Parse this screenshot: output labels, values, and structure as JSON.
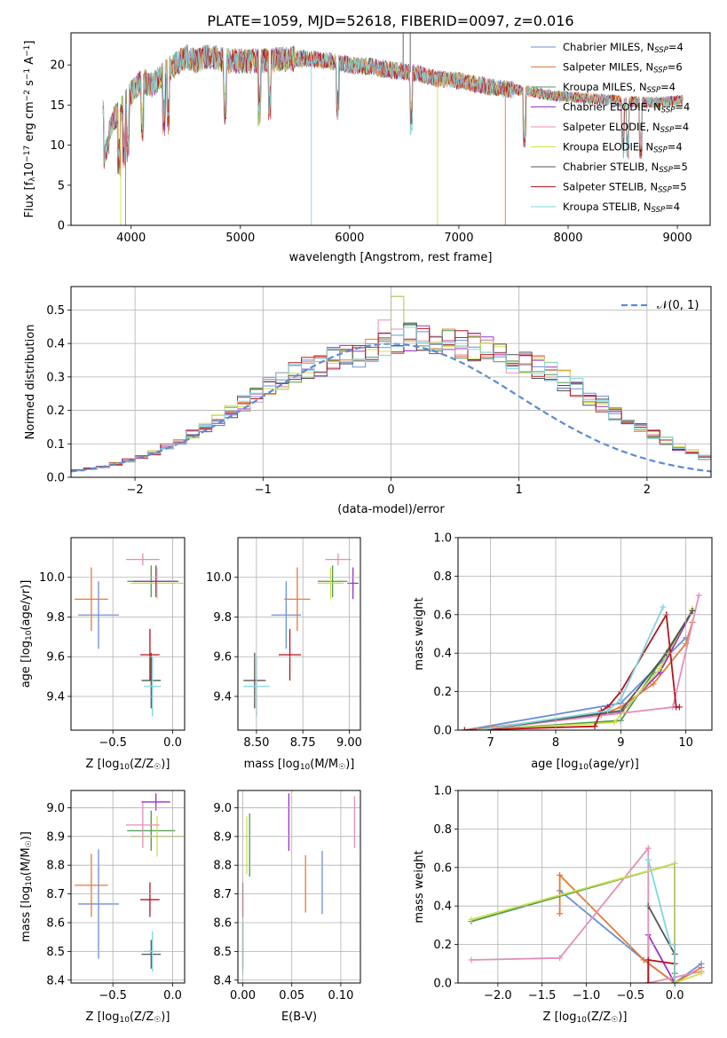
{
  "figure": {
    "title": "PLATE=1059, MJD=52618, FIBERID=0097, z=0.016"
  },
  "legend_models": [
    {
      "name": "Chabrier MILES, N",
      "sub": "SSP",
      "suffix": "=4",
      "color": "#6a8fd6"
    },
    {
      "name": "Salpeter MILES, N",
      "sub": "SSP",
      "suffix": "=6",
      "color": "#e67a35"
    },
    {
      "name": "Kroupa MILES, N",
      "sub": "SSP",
      "suffix": "=4",
      "color": "#4d9a4d"
    },
    {
      "name": "Chabrier ELODIE, N",
      "sub": "SSP",
      "suffix": "=4",
      "color": "#9b30c8"
    },
    {
      "name": "Salpeter ELODIE, N",
      "sub": "SSP",
      "suffix": "=4",
      "color": "#e58fb8"
    },
    {
      "name": "Kroupa ELODIE, N",
      "sub": "SSP",
      "suffix": "=4",
      "color": "#cfe04a"
    },
    {
      "name": "Chabrier STELIB, N",
      "sub": "SSP",
      "suffix": "=5",
      "color": "#555555"
    },
    {
      "name": "Salpeter STELIB, N",
      "sub": "SSP",
      "suffix": "=5",
      "color": "#b3151e"
    },
    {
      "name": "Kroupa STELIB, N",
      "sub": "SSP",
      "suffix": "=4",
      "color": "#7fd7e0"
    }
  ],
  "normal_legend": {
    "label": "𝒩(0, 1)",
    "color": "#5b8ad6"
  },
  "chart_data": [
    {
      "id": "spectrum",
      "type": "line",
      "xlabel": "wavelength [Angstrom, rest frame]",
      "ylabel": "Flux [f",
      "ylabel_sub": "λ",
      "ylabel_mid": "10",
      "ylabel_sup": "−17",
      "ylabel_rest": " erg cm",
      "ylabel_sup2": "−2",
      "ylabel_rest2": " s",
      "ylabel_sup3": "−1",
      "ylabel_rest3": " A",
      "ylabel_sup4": "−1",
      "ylabel_end": "]",
      "xlim": [
        3450,
        9300
      ],
      "ylim": [
        0,
        24
      ],
      "xticks": [
        4000,
        5000,
        6000,
        7000,
        8000,
        9000
      ],
      "yticks": [
        0,
        5,
        10,
        15,
        20
      ],
      "envelope": {
        "x": [
          3750,
          3800,
          3850,
          3900,
          3950,
          4000,
          4100,
          4200,
          4300,
          4400,
          4500,
          4600,
          4700,
          4800,
          4900,
          5000,
          5200,
          5400,
          5600,
          5800,
          6000,
          6200,
          6400,
          6600,
          6800,
          7000,
          7200,
          7400,
          7600,
          7800,
          8000,
          8200,
          8400,
          8600,
          8800,
          9000,
          9050
        ],
        "y": [
          10.0,
          12.0,
          13.5,
          14.0,
          15.5,
          16.5,
          18.0,
          17.5,
          19.0,
          20.0,
          21.0,
          20.5,
          21.0,
          20.8,
          20.5,
          20.5,
          20.5,
          20.7,
          20.8,
          20.5,
          20.0,
          19.8,
          19.3,
          19.0,
          18.3,
          18.0,
          17.5,
          17.0,
          16.8,
          16.3,
          16.0,
          15.8,
          15.6,
          15.4,
          15.3,
          15.5,
          15.6
        ]
      }
    },
    {
      "id": "residuals",
      "type": "histogram",
      "xlabel": "(data-model)/error",
      "ylabel": "Normed distribution",
      "xlim": [
        -2.5,
        2.5
      ],
      "ylim": [
        0,
        0.57
      ],
      "xticks": [
        -2,
        -1,
        0,
        1,
        2
      ],
      "yticks": [
        0.0,
        0.1,
        0.2,
        0.3,
        0.4,
        0.5
      ],
      "bin_width": 0.1,
      "center_values": [
        0.02,
        0.025,
        0.03,
        0.04,
        0.05,
        0.06,
        0.075,
        0.09,
        0.11,
        0.13,
        0.15,
        0.17,
        0.2,
        0.22,
        0.25,
        0.27,
        0.29,
        0.31,
        0.33,
        0.34,
        0.35,
        0.36,
        0.37,
        0.38,
        0.39,
        0.4,
        0.42,
        0.41,
        0.4,
        0.41,
        0.4,
        0.39,
        0.38,
        0.37,
        0.35,
        0.34,
        0.33,
        0.31,
        0.29,
        0.27,
        0.24,
        0.22,
        0.19,
        0.17,
        0.15,
        0.13,
        0.11,
        0.09,
        0.075,
        0.06
      ]
    },
    {
      "id": "age_vs_Z",
      "type": "errorbar",
      "xlabel": "Z [log",
      "xlabel_sub": "10",
      "xlabel_rest": "(Z/Z",
      "xlabel_sub2": "☉",
      "xlabel_end": ")]",
      "ylabel": "age  [log",
      "ylabel_sub": "10",
      "ylabel_rest": "(age/yr)]",
      "xlim": [
        -0.85,
        0.1
      ],
      "ylim": [
        9.23,
        10.2
      ],
      "xticks": [
        -0.5,
        0.0
      ],
      "xticklabels": [
        "−0.5",
        "0.0"
      ],
      "yticks": [
        9.4,
        9.6,
        9.8,
        10.0
      ],
      "points": [
        {
          "x": -0.62,
          "y": 9.81,
          "xerr": 0.17,
          "yerr": 0.17,
          "c": 0
        },
        {
          "x": -0.68,
          "y": 9.89,
          "xerr": 0.14,
          "yerr": 0.16,
          "c": 1
        },
        {
          "x": -0.18,
          "y": 9.98,
          "xerr": 0.2,
          "yerr": 0.08,
          "c": 2
        },
        {
          "x": -0.13,
          "y": 9.97,
          "xerr": 0.22,
          "yerr": 0.08,
          "c": 5
        },
        {
          "x": -0.25,
          "y": 10.09,
          "xerr": 0.14,
          "yerr": 0.03,
          "c": 4
        },
        {
          "x": -0.14,
          "y": 9.98,
          "xerr": 0.19,
          "yerr": 0.08,
          "c": 3
        },
        {
          "x": -0.19,
          "y": 9.61,
          "xerr": 0.08,
          "yerr": 0.13,
          "c": 7
        },
        {
          "x": -0.18,
          "y": 9.48,
          "xerr": 0.08,
          "yerr": 0.14,
          "c": 6
        },
        {
          "x": -0.17,
          "y": 9.45,
          "xerr": 0.07,
          "yerr": 0.15,
          "c": 8
        }
      ]
    },
    {
      "id": "age_vs_mass",
      "type": "errorbar",
      "xlabel": "mass [log",
      "xlabel_sub": "10",
      "xlabel_rest": "(M/M",
      "xlabel_sub2": "☉",
      "xlabel_end": ")]",
      "xlim": [
        8.4,
        9.06
      ],
      "ylim": [
        9.23,
        10.2
      ],
      "xticks": [
        8.5,
        8.75,
        9.0
      ],
      "xticklabels": [
        "8.50",
        "8.75",
        "9.00"
      ],
      "yticks": [
        9.4,
        9.6,
        9.8,
        10.0
      ],
      "points": [
        {
          "x": 8.66,
          "y": 9.81,
          "xerr": 0.08,
          "yerr": 0.17,
          "c": 0
        },
        {
          "x": 8.72,
          "y": 9.89,
          "xerr": 0.07,
          "yerr": 0.16,
          "c": 1
        },
        {
          "x": 8.91,
          "y": 9.98,
          "xerr": 0.08,
          "yerr": 0.08,
          "c": 2
        },
        {
          "x": 8.9,
          "y": 9.97,
          "xerr": 0.07,
          "yerr": 0.08,
          "c": 5
        },
        {
          "x": 8.94,
          "y": 10.09,
          "xerr": 0.07,
          "yerr": 0.03,
          "c": 4
        },
        {
          "x": 9.02,
          "y": 9.97,
          "xerr": 0.03,
          "yerr": 0.08,
          "c": 3
        },
        {
          "x": 8.68,
          "y": 9.61,
          "xerr": 0.06,
          "yerr": 0.13,
          "c": 7
        },
        {
          "x": 8.49,
          "y": 9.48,
          "xerr": 0.06,
          "yerr": 0.14,
          "c": 6
        },
        {
          "x": 8.5,
          "y": 9.45,
          "xerr": 0.07,
          "yerr": 0.15,
          "c": 8
        }
      ]
    },
    {
      "id": "weight_vs_age",
      "type": "line",
      "xlabel": "age  [log",
      "xlabel_sub": "10",
      "xlabel_rest": "(age/yr)]",
      "ylabel": "mass weight",
      "xlim": [
        6.5,
        10.4
      ],
      "ylim": [
        0,
        1.0
      ],
      "xticks": [
        7,
        8,
        9,
        10
      ],
      "yticks": [
        0.0,
        0.2,
        0.4,
        0.6,
        0.8,
        1.0
      ],
      "series": [
        {
          "c": 0,
          "x": [
            6.6,
            9.0,
            9.7,
            10.0
          ],
          "y": [
            0.0,
            0.14,
            0.38,
            0.48
          ]
        },
        {
          "c": 1,
          "x": [
            6.6,
            8.7,
            9.0,
            9.5,
            10.0,
            10.1
          ],
          "y": [
            0.0,
            0.08,
            0.12,
            0.24,
            0.45,
            0.56
          ]
        },
        {
          "c": 2,
          "x": [
            6.8,
            9.0,
            9.5,
            10.1
          ],
          "y": [
            0.0,
            0.05,
            0.3,
            0.62
          ]
        },
        {
          "c": 3,
          "x": [
            6.8,
            9.0,
            9.6,
            10.1
          ],
          "y": [
            0.0,
            0.09,
            0.3,
            0.62
          ]
        },
        {
          "c": 4,
          "x": [
            6.8,
            9.8,
            10.2
          ],
          "y": [
            0.0,
            0.12,
            0.7
          ]
        },
        {
          "c": 5,
          "x": [
            6.8,
            8.9,
            9.6,
            10.1
          ],
          "y": [
            0.0,
            0.04,
            0.32,
            0.63
          ]
        },
        {
          "c": 6,
          "x": [
            6.8,
            9.0,
            9.7,
            10.1
          ],
          "y": [
            0.0,
            0.1,
            0.4,
            0.62
          ]
        },
        {
          "c": 7,
          "x": [
            6.6,
            8.6,
            8.7,
            8.8,
            9.0,
            9.7,
            9.85,
            9.9
          ],
          "y": [
            0.0,
            0.02,
            0.1,
            0.12,
            0.2,
            0.6,
            0.12,
            0.12
          ]
        },
        {
          "c": 8,
          "x": [
            6.8,
            8.8,
            9.0,
            9.65
          ],
          "y": [
            0.0,
            0.1,
            0.16,
            0.64
          ]
        }
      ]
    },
    {
      "id": "mass_vs_Z",
      "type": "errorbar",
      "xlabel": "Z [log",
      "xlabel_sub": "10",
      "xlabel_rest": "(Z/Z",
      "xlabel_sub2": "☉",
      "xlabel_end": ")]",
      "ylabel": "mass [log",
      "ylabel_sub": "10",
      "ylabel_rest": "(M/M",
      "ylabel_sub2": "☉",
      "ylabel_end": ")]",
      "xlim": [
        -0.85,
        0.1
      ],
      "ylim": [
        8.39,
        9.06
      ],
      "xticks": [
        -0.5,
        0.0
      ],
      "xticklabels": [
        "−0.5",
        "0.0"
      ],
      "yticks": [
        8.4,
        8.5,
        8.6,
        8.7,
        8.8,
        8.9,
        9.0
      ],
      "points": [
        {
          "x": -0.62,
          "y": 8.665,
          "xerr": 0.17,
          "yerr": 0.19,
          "c": 0
        },
        {
          "x": -0.68,
          "y": 8.73,
          "xerr": 0.14,
          "yerr": 0.11,
          "c": 1
        },
        {
          "x": -0.18,
          "y": 8.92,
          "xerr": 0.2,
          "yerr": 0.07,
          "c": 2
        },
        {
          "x": -0.13,
          "y": 8.9,
          "xerr": 0.22,
          "yerr": 0.07,
          "c": 5
        },
        {
          "x": -0.25,
          "y": 8.94,
          "xerr": 0.14,
          "yerr": 0.08,
          "c": 4
        },
        {
          "x": -0.14,
          "y": 9.02,
          "xerr": 0.12,
          "yerr": 0.03,
          "c": 3
        },
        {
          "x": -0.19,
          "y": 8.68,
          "xerr": 0.08,
          "yerr": 0.06,
          "c": 7
        },
        {
          "x": -0.18,
          "y": 8.49,
          "xerr": 0.08,
          "yerr": 0.05,
          "c": 6
        },
        {
          "x": -0.17,
          "y": 8.5,
          "xerr": 0.07,
          "yerr": 0.07,
          "c": 8
        }
      ]
    },
    {
      "id": "mass_vs_ebv",
      "type": "errorbar",
      "xlabel": "E(B-V)",
      "xlim": [
        -0.005,
        0.12
      ],
      "ylim": [
        8.39,
        9.06
      ],
      "xticks": [
        0.0,
        0.05,
        0.1
      ],
      "xticklabels": [
        "0.00",
        "0.05",
        "0.10"
      ],
      "yticks": [
        8.4,
        8.5,
        8.6,
        8.7,
        8.8,
        8.9,
        9.0
      ],
      "points": [
        {
          "x": 0.081,
          "y": 8.74,
          "xerr": 0,
          "yerr": 0.11,
          "c": 0
        },
        {
          "x": 0.064,
          "y": 8.735,
          "xerr": 0,
          "yerr": 0.1,
          "c": 1
        },
        {
          "x": 0.007,
          "y": 8.87,
          "xerr": 0,
          "yerr": 0.11,
          "c": 2
        },
        {
          "x": 0.004,
          "y": 8.87,
          "xerr": 0,
          "yerr": 0.1,
          "c": 5
        },
        {
          "x": 0.114,
          "y": 8.95,
          "xerr": 0,
          "yerr": 0.09,
          "c": 4
        },
        {
          "x": 0.047,
          "y": 8.95,
          "xerr": 0,
          "yerr": 0.1,
          "c": 3
        },
        {
          "x": 0.0,
          "y": 8.68,
          "xerr": 0,
          "yerr": 0.06,
          "c": 7
        },
        {
          "x": 0.0,
          "y": 8.52,
          "xerr": 0,
          "yerr": 0.08,
          "c": 6
        },
        {
          "x": 0.0,
          "y": 8.52,
          "xerr": 0,
          "yerr": 0.1,
          "c": 8
        }
      ]
    },
    {
      "id": "weight_vs_Z",
      "type": "line",
      "xlabel": "Z [log",
      "xlabel_sub": "10",
      "xlabel_rest": "(Z/Z",
      "xlabel_sub2": "☉",
      "xlabel_end": ")]",
      "ylabel": "mass weight",
      "xlim": [
        -2.45,
        0.42
      ],
      "ylim": [
        0,
        1.0
      ],
      "xticks": [
        -2.0,
        -1.5,
        -1.0,
        -0.5,
        0.0
      ],
      "xticklabels": [
        "−2.0",
        "−1.5",
        "−1.0",
        "−0.5",
        "0.0"
      ],
      "yticks": [
        0.0,
        0.2,
        0.4,
        0.6,
        0.8,
        1.0
      ],
      "series": [
        {
          "c": 0,
          "x": [
            -1.3,
            -0.35,
            0.0,
            0.3
          ],
          "y": [
            0.48,
            0.12,
            0.0,
            0.1
          ]
        },
        {
          "c": 1,
          "x": [
            -1.3,
            -1.3,
            -0.35,
            0.0,
            0.3
          ],
          "y": [
            0.36,
            0.56,
            0.12,
            0.0,
            0.08
          ]
        },
        {
          "c": 2,
          "x": [
            -2.3,
            0.0,
            0.0
          ],
          "y": [
            0.32,
            0.62,
            0.05
          ]
        },
        {
          "c": 3,
          "x": [
            -0.3,
            -0.3,
            0.0
          ],
          "y": [
            0.0,
            0.25,
            0.0
          ]
        },
        {
          "c": 4,
          "x": [
            -2.3,
            -1.3,
            -0.3,
            -0.3,
            0.3
          ],
          "y": [
            0.12,
            0.13,
            0.7,
            0.0,
            0.06
          ]
        },
        {
          "c": 5,
          "x": [
            -2.3,
            0.0,
            0.0,
            0.3
          ],
          "y": [
            0.33,
            0.62,
            0.0,
            0.05
          ]
        },
        {
          "c": 6,
          "x": [
            -0.3,
            0.0,
            0.0
          ],
          "y": [
            0.4,
            0.15,
            0.0
          ]
        },
        {
          "c": 7,
          "x": [
            -0.3,
            -0.3,
            0.0
          ],
          "y": [
            0.0,
            0.12,
            0.1
          ]
        },
        {
          "c": 8,
          "x": [
            -0.3,
            -0.05,
            0.0,
            0.0
          ],
          "y": [
            0.64,
            0.2,
            0.2,
            0.0
          ]
        }
      ]
    }
  ]
}
